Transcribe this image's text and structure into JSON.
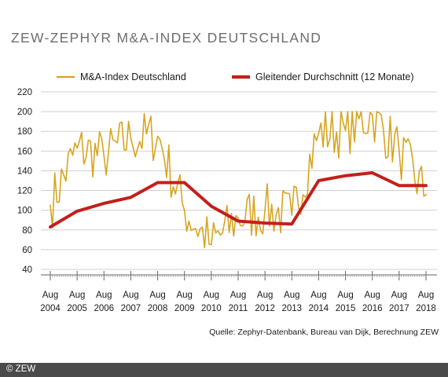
{
  "title": "ZEW-ZEPHYR M&A-INDEX DEUTSCHLAND",
  "source": "Quelle: Zephyr-Datenbank, Bureau van Dijk, Berechnung ZEW",
  "copyright": "© ZEW",
  "colors": {
    "raw": "#d8a520",
    "smooth": "#c2201c",
    "grid": "#d0d0d0",
    "axis": "#666666"
  },
  "chart_data": {
    "type": "line",
    "title": "ZEW-ZEPHYR M&A-INDEX DEUTSCHLAND",
    "xlabel": "",
    "ylabel": "",
    "ylim": [
      40,
      220
    ],
    "yticks": [
      40,
      60,
      80,
      100,
      120,
      140,
      160,
      180,
      200,
      220
    ],
    "xticks": [
      {
        "month": "Aug",
        "year": "2004"
      },
      {
        "month": "Aug",
        "year": "2005"
      },
      {
        "month": "Aug",
        "year": "2006"
      },
      {
        "month": "Aug",
        "year": "2007"
      },
      {
        "month": "Aug",
        "year": "2008"
      },
      {
        "month": "Aug",
        "year": "2009"
      },
      {
        "month": "Aug",
        "year": "2010"
      },
      {
        "month": "Aug",
        "year": "2011"
      },
      {
        "month": "Aug",
        "year": "2012"
      },
      {
        "month": "Aug",
        "year": "2013"
      },
      {
        "month": "Aug",
        "year": "2014"
      },
      {
        "month": "Aug",
        "year": "2015"
      },
      {
        "month": "Aug",
        "year": "2016"
      },
      {
        "month": "Aug",
        "year": "2017"
      },
      {
        "month": "Aug",
        "year": "2018"
      }
    ],
    "grid": true,
    "legend": "top",
    "series": [
      {
        "name": "M&A-Index Deutschland",
        "color": "#d8a520",
        "annual_points": [
          {
            "x": "2004-08",
            "y": 105
          },
          {
            "x": "2005-08",
            "y": 163
          },
          {
            "x": "2006-08",
            "y": 155
          },
          {
            "x": "2007-08",
            "y": 173
          },
          {
            "x": "2008-08",
            "y": 175
          },
          {
            "x": "2009-08",
            "y": 100
          },
          {
            "x": "2010-08",
            "y": 65
          },
          {
            "x": "2011-08",
            "y": 92
          },
          {
            "x": "2012-08",
            "y": 100
          },
          {
            "x": "2013-08",
            "y": 95
          },
          {
            "x": "2014-08",
            "y": 178
          },
          {
            "x": "2015-08",
            "y": 181
          },
          {
            "x": "2016-08",
            "y": 197
          },
          {
            "x": "2017-08",
            "y": 160
          },
          {
            "x": "2018-08",
            "y": 116
          }
        ]
      },
      {
        "name": "Gleitender Durchschnitt (12 Monate)",
        "color": "#c2201c",
        "annual_points": [
          {
            "x": "2004-08",
            "y": 83
          },
          {
            "x": "2005-08",
            "y": 99
          },
          {
            "x": "2006-08",
            "y": 107
          },
          {
            "x": "2007-08",
            "y": 113
          },
          {
            "x": "2008-08",
            "y": 128
          },
          {
            "x": "2009-08",
            "y": 128
          },
          {
            "x": "2010-08",
            "y": 104
          },
          {
            "x": "2011-08",
            "y": 89
          },
          {
            "x": "2012-08",
            "y": 87
          },
          {
            "x": "2013-08",
            "y": 86
          },
          {
            "x": "2014-08",
            "y": 130
          },
          {
            "x": "2015-08",
            "y": 135
          },
          {
            "x": "2016-08",
            "y": 138
          },
          {
            "x": "2017-08",
            "y": 125
          },
          {
            "x": "2018-08",
            "y": 125
          }
        ]
      }
    ]
  }
}
